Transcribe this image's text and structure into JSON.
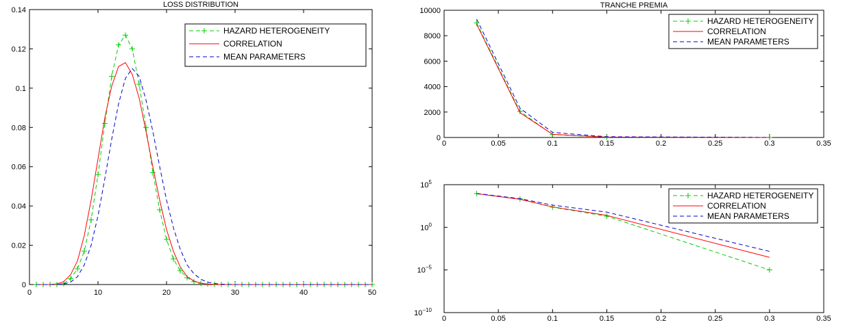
{
  "chart_data": [
    {
      "type": "line",
      "title": "LOSS DISTRIBUTION",
      "xlabel": "",
      "ylabel": "",
      "xlim": [
        0,
        50
      ],
      "ylim": [
        0,
        0.14
      ],
      "xticks": [
        "0",
        "10",
        "20",
        "30",
        "40",
        "50"
      ],
      "yticks": [
        "0",
        "0.02",
        "0.04",
        "0.06",
        "0.08",
        "0.1",
        "0.12",
        "0.14"
      ],
      "grid": false,
      "legend": "top-right",
      "series": [
        {
          "name": "HAZARD HETEROGENEITY",
          "color": "#00cc00",
          "style": "dashed-plus",
          "x": [
            1,
            2,
            3,
            4,
            5,
            6,
            7,
            8,
            9,
            10,
            11,
            12,
            13,
            14,
            15,
            16,
            17,
            18,
            19,
            20,
            21,
            22,
            23,
            24,
            25,
            26,
            27,
            28,
            29,
            30,
            31,
            32,
            33,
            34,
            35,
            36,
            37,
            38,
            39,
            40,
            41,
            42,
            43,
            44,
            45,
            46,
            47,
            48,
            49,
            50
          ],
          "y": [
            0,
            0,
            0,
            0,
            0.0005,
            0.003,
            0.008,
            0.017,
            0.033,
            0.056,
            0.082,
            0.106,
            0.122,
            0.127,
            0.12,
            0.102,
            0.08,
            0.057,
            0.038,
            0.023,
            0.013,
            0.007,
            0.0035,
            0.0015,
            0.0006,
            0.0002,
            0.0001,
            0,
            0,
            0,
            0,
            0,
            0,
            0,
            0,
            0,
            0,
            0,
            0,
            0,
            0,
            0,
            0,
            0,
            0,
            0,
            0,
            0,
            0,
            0
          ]
        },
        {
          "name": "CORRELATION",
          "color": "#ff0000",
          "style": "solid",
          "x": [
            1,
            2,
            3,
            4,
            5,
            6,
            7,
            8,
            9,
            10,
            11,
            12,
            13,
            14,
            15,
            16,
            17,
            18,
            19,
            20,
            21,
            22,
            23,
            24,
            25,
            26,
            27,
            28,
            29,
            30,
            31,
            32,
            33,
            34,
            35,
            36,
            37,
            38,
            39,
            40,
            41,
            42,
            43,
            44,
            45,
            46,
            47,
            48,
            49,
            50
          ],
          "y": [
            0,
            0,
            0,
            0.0003,
            0.0015,
            0.005,
            0.012,
            0.025,
            0.043,
            0.064,
            0.085,
            0.101,
            0.111,
            0.113,
            0.107,
            0.095,
            0.078,
            0.06,
            0.043,
            0.028,
            0.017,
            0.009,
            0.004,
            0.0018,
            0.0007,
            0.0002,
            0.0001,
            0,
            0,
            0,
            0,
            0,
            0,
            0,
            0,
            0,
            0,
            0,
            0,
            0,
            0,
            0,
            0,
            0,
            0,
            0,
            0,
            0,
            0,
            0
          ]
        },
        {
          "name": "MEAN PARAMETERS",
          "color": "#0000cc",
          "style": "dashed",
          "x": [
            1,
            2,
            3,
            4,
            5,
            6,
            7,
            8,
            9,
            10,
            11,
            12,
            13,
            14,
            15,
            16,
            17,
            18,
            19,
            20,
            21,
            22,
            23,
            24,
            25,
            26,
            27,
            28,
            29,
            30,
            31,
            32,
            33,
            34,
            35,
            36,
            37,
            38,
            39,
            40,
            41,
            42,
            43,
            44,
            45,
            46,
            47,
            48,
            49,
            50
          ],
          "y": [
            0,
            0,
            0,
            0,
            0.0003,
            0.0012,
            0.004,
            0.01,
            0.02,
            0.035,
            0.054,
            0.074,
            0.092,
            0.105,
            0.11,
            0.106,
            0.094,
            0.078,
            0.06,
            0.043,
            0.029,
            0.018,
            0.01,
            0.0055,
            0.0027,
            0.0012,
            0.0005,
            0.0002,
            0.0001,
            0,
            0,
            0,
            0,
            0,
            0,
            0,
            0,
            0,
            0,
            0,
            0,
            0,
            0,
            0,
            0,
            0,
            0,
            0,
            0,
            0
          ]
        }
      ]
    },
    {
      "type": "line",
      "title": "TRANCHE PREMIA",
      "xlabel": "",
      "ylabel": "",
      "xlim": [
        0,
        0.35
      ],
      "ylim": [
        0,
        10000
      ],
      "xticks": [
        "0",
        "0.05",
        "0.1",
        "0.15",
        "0.2",
        "0.25",
        "0.3",
        "0.35"
      ],
      "yticks": [
        "0",
        "2000",
        "4000",
        "6000",
        "8000",
        "10000"
      ],
      "grid": false,
      "legend": "top-right",
      "series": [
        {
          "name": "HAZARD HETEROGENEITY",
          "color": "#00cc00",
          "style": "dashed-plus",
          "x": [
            0.03,
            0.07,
            0.1,
            0.15,
            0.3
          ],
          "y": [
            9000,
            2050,
            230,
            20,
            0
          ]
        },
        {
          "name": "CORRELATION",
          "color": "#ff0000",
          "style": "solid",
          "x": [
            0.03,
            0.07,
            0.1,
            0.15,
            0.3
          ],
          "y": [
            8900,
            1950,
            250,
            25,
            0
          ]
        },
        {
          "name": "MEAN PARAMETERS",
          "color": "#0000cc",
          "style": "dashed",
          "x": [
            0.03,
            0.07,
            0.1,
            0.15,
            0.3
          ],
          "y": [
            9300,
            2300,
            400,
            60,
            5
          ]
        }
      ]
    },
    {
      "type": "line",
      "title": "",
      "xlabel": "",
      "ylabel": "",
      "xlim": [
        0,
        0.35
      ],
      "ylim": [
        1e-10,
        100000
      ],
      "yscale": "log",
      "xticks": [
        "0",
        "0.05",
        "0.1",
        "0.15",
        "0.2",
        "0.25",
        "0.3",
        "0.35"
      ],
      "yticks": [
        {
          "base": "10",
          "exp": "5"
        },
        {
          "base": "10",
          "exp": "0"
        },
        {
          "base": "10",
          "exp": "−5"
        },
        {
          "base": "10",
          "exp": "−10"
        }
      ],
      "grid": false,
      "legend": "top-right",
      "series": [
        {
          "name": "HAZARD HETEROGENEITY",
          "color": "#00cc00",
          "style": "dashed-plus",
          "x": [
            0.03,
            0.07,
            0.1,
            0.15,
            0.3
          ],
          "y": [
            9000,
            2050,
            230,
            20,
            1e-05
          ]
        },
        {
          "name": "CORRELATION",
          "color": "#ff0000",
          "style": "solid",
          "x": [
            0.03,
            0.07,
            0.1,
            0.15,
            0.3
          ],
          "y": [
            8900,
            1950,
            250,
            25,
            0.0003
          ]
        },
        {
          "name": "MEAN PARAMETERS",
          "color": "#0000cc",
          "style": "dashed",
          "x": [
            0.03,
            0.07,
            0.1,
            0.15,
            0.3
          ],
          "y": [
            9300,
            2300,
            400,
            60,
            0.0015
          ]
        }
      ]
    }
  ]
}
